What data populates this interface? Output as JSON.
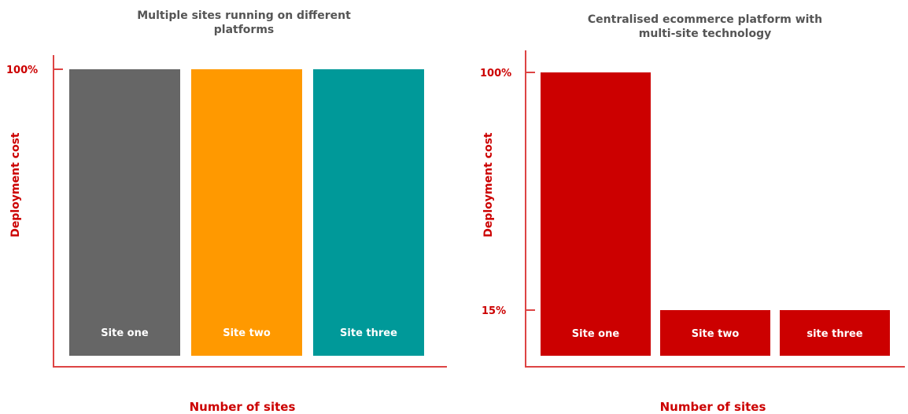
{
  "chart_data": [
    {
      "type": "bar",
      "title_lines": [
        "Multiple sites running on different",
        "platforms"
      ],
      "xlabel": "Number of sites",
      "ylabel": "Deployment cost",
      "ytick_labels": [
        "100%"
      ],
      "ylim": [
        0,
        100
      ],
      "categories": [
        "Site one",
        "Site two",
        "Site three"
      ],
      "values": [
        100,
        100,
        100
      ],
      "colors": [
        "#666666",
        "#ff9900",
        "#009999"
      ]
    },
    {
      "type": "bar",
      "title_lines": [
        "Centralised ecommerce platform with",
        "multi-site technology"
      ],
      "xlabel": "Number of sites",
      "ylabel": "Deployment cost",
      "ytick_labels": [
        "100%",
        "15%"
      ],
      "ylim": [
        0,
        100
      ],
      "categories": [
        "Site one",
        "Site two",
        "site three"
      ],
      "values": [
        100,
        15,
        15
      ],
      "colors": [
        "#cc0000",
        "#cc0000",
        "#cc0000"
      ]
    }
  ]
}
